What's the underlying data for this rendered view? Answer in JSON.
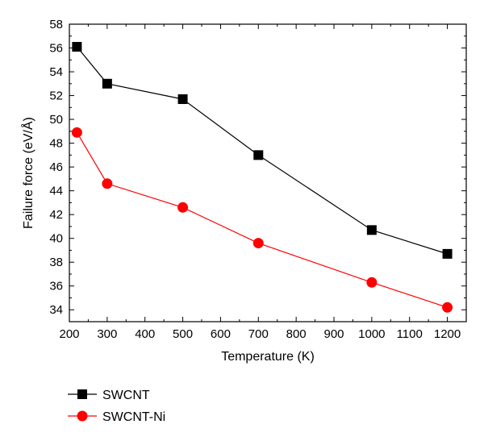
{
  "chart_data": {
    "type": "line",
    "title": "",
    "xlabel": "Temperature (K)",
    "ylabel": "Failure force (eV/Å)",
    "xlim": [
      200,
      1250
    ],
    "ylim": [
      33,
      58
    ],
    "xticks": [
      200,
      300,
      400,
      500,
      600,
      700,
      800,
      900,
      1000,
      1100,
      1200
    ],
    "yticks": [
      34,
      36,
      38,
      40,
      42,
      44,
      46,
      48,
      50,
      52,
      54,
      56,
      58
    ],
    "grid": false,
    "legend_position": "bottom-left, below plot",
    "series": [
      {
        "name": "SWCNT",
        "color": "#000000",
        "marker": "square",
        "x": [
          220,
          300,
          500,
          700,
          1000,
          1200
        ],
        "y": [
          56.1,
          53.0,
          51.7,
          47.0,
          40.7,
          38.7
        ]
      },
      {
        "name": "SWCNT-Ni",
        "color": "#ff0000",
        "marker": "circle",
        "x": [
          220,
          300,
          500,
          700,
          1000,
          1200
        ],
        "y": [
          48.9,
          44.6,
          42.6,
          39.6,
          36.3,
          34.2
        ]
      }
    ]
  }
}
